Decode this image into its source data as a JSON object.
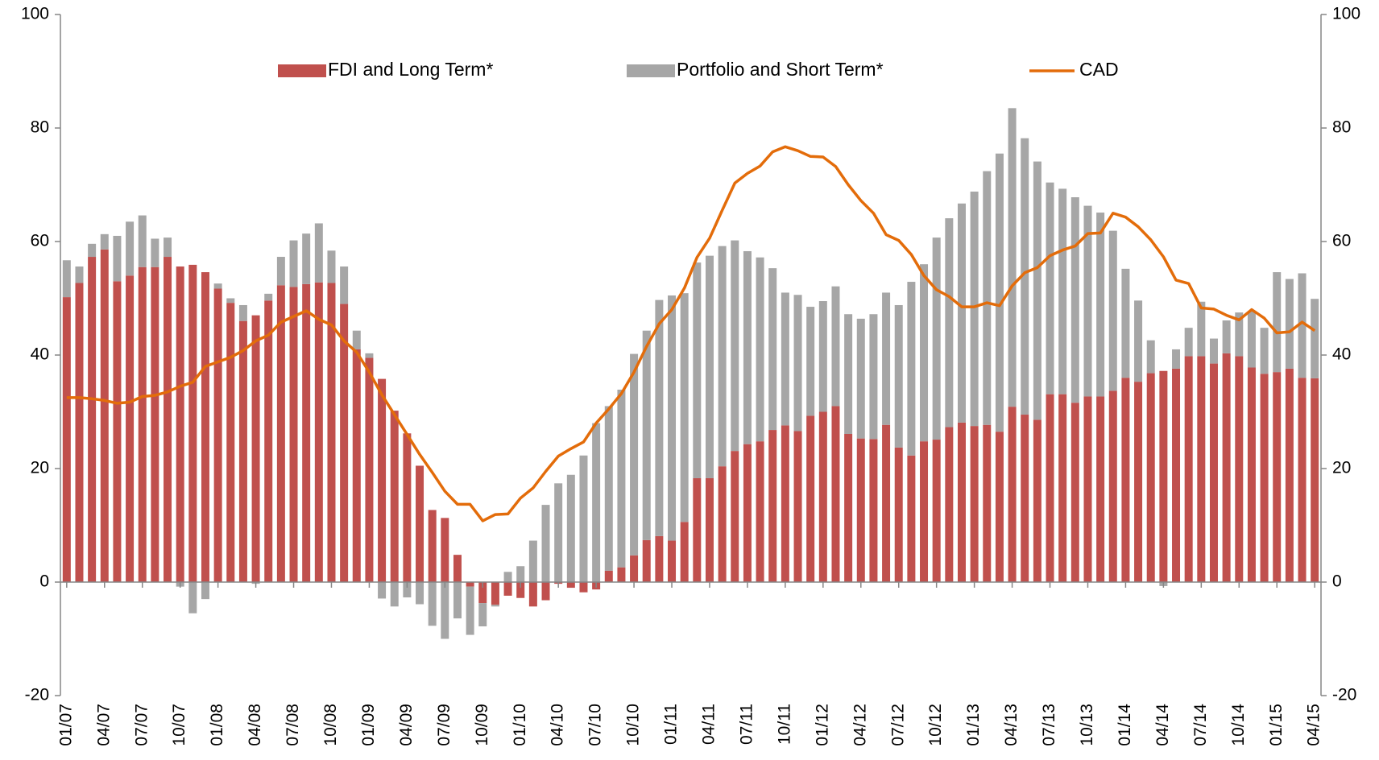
{
  "chart_data": {
    "type": "bar",
    "categories": [
      "01/07",
      null,
      null,
      "04/07",
      null,
      null,
      "07/07",
      null,
      null,
      "10/07",
      null,
      null,
      "01/08",
      null,
      null,
      "04/08",
      null,
      null,
      "07/08",
      null,
      null,
      "10/08",
      null,
      null,
      "01/09",
      null,
      null,
      "04/09",
      null,
      null,
      "07/09",
      null,
      null,
      "10/09",
      null,
      null,
      "01/10",
      null,
      null,
      "04/10",
      null,
      null,
      "07/10",
      null,
      null,
      "10/10",
      null,
      null,
      "01/11",
      null,
      null,
      "04/11",
      null,
      null,
      "07/11",
      null,
      null,
      "10/11",
      null,
      null,
      "01/12",
      null,
      null,
      "04/12",
      null,
      null,
      "07/12",
      null,
      null,
      "10/12",
      null,
      null,
      "01/13",
      null,
      null,
      "04/13",
      null,
      null,
      "07/13",
      null,
      null,
      "10/13",
      null,
      null,
      "01/14",
      null,
      null,
      "04/14",
      null,
      null,
      "07/14",
      null,
      null,
      "10/14",
      null,
      null,
      "01/15",
      null,
      null,
      "04/15"
    ],
    "series": [
      {
        "name": "FDI and Long Term*",
        "type": "bar",
        "color": "#c0504d",
        "values": [
          50.2,
          52.7,
          57.3,
          58.6,
          53,
          54,
          55.5,
          55.5,
          57.3,
          55.6,
          55.9,
          54.6,
          51.7,
          49.2,
          46,
          47,
          49.6,
          52.3,
          52,
          52.5,
          52.8,
          52.7,
          49,
          41,
          39.5,
          35.8,
          30.2,
          26.2,
          20.5,
          12.7,
          11.3,
          4.8,
          -0.8,
          -3.7,
          -4,
          -2.4,
          -2.8,
          -4.3,
          -3.2,
          -0.3,
          -1,
          -1.8,
          -1.3,
          2,
          2.6,
          4.7,
          7.4,
          8.1,
          7.3,
          10.6,
          18.3,
          18.3,
          20.4,
          23.1,
          24.3,
          24.8,
          26.8,
          27.6,
          26.6,
          29.3,
          30,
          31,
          26.1,
          25.3,
          25.2,
          27.7,
          23.7,
          22.3,
          24.8,
          25.1,
          27.3,
          28.1,
          27.5,
          27.7,
          26.5,
          30.9,
          29.5,
          28.6,
          33.1,
          33.1,
          31.6,
          32.7,
          32.7,
          33.7,
          36,
          35.3,
          36.8,
          37.2,
          37.6,
          39.8,
          39.8,
          38.5,
          40.3,
          39.8,
          37.8,
          36.7,
          37,
          37.6,
          36,
          35.9
        ]
      },
      {
        "name": "Portfolio and Short Term*",
        "type": "bar",
        "color": "#a6a6a6",
        "values": [
          6.5,
          2.9,
          2.3,
          2.7,
          8,
          9.5,
          9.1,
          5,
          3.4,
          -0.8,
          -5.5,
          -3,
          0.9,
          0.8,
          2.8,
          -0.3,
          1.2,
          5,
          8.2,
          8.9,
          10.4,
          5.7,
          6.6,
          3.3,
          0.8,
          -2.9,
          -4.3,
          -2.7,
          -3.9,
          -7.7,
          -10,
          -6.4,
          -8.5,
          -4.1,
          -0.3,
          1.8,
          2.8,
          7.3,
          13.6,
          17.4,
          18.9,
          22.3,
          28,
          29,
          31.3,
          35.5,
          36.9,
          41.6,
          43.2,
          40.3,
          38,
          39.2,
          38.8,
          37.1,
          34,
          32.4,
          28.5,
          23.4,
          24,
          19.2,
          19.5,
          21.1,
          21.1,
          21.1,
          22,
          23.3,
          25.1,
          30.6,
          31.2,
          35.6,
          36.8,
          38.6,
          41.3,
          44.7,
          49,
          52.6,
          48.7,
          45.5,
          37.3,
          36.2,
          36.2,
          33.6,
          32.4,
          28.2,
          19.2,
          14.3,
          5.8,
          -0.7,
          3.4,
          5,
          9.6,
          4.4,
          5.8,
          7.7,
          9.9,
          8.1,
          17.6,
          15.8,
          18.4,
          14
        ]
      },
      {
        "name": "CAD",
        "type": "line",
        "axis": "y2",
        "color": "#e36c0a",
        "values": [
          32.5,
          32.5,
          32.3,
          32,
          31.5,
          31.7,
          32.7,
          32.9,
          33.5,
          34.5,
          35.2,
          38,
          38.8,
          39.6,
          40.8,
          42.5,
          43.5,
          45.8,
          46.8,
          47.8,
          46.3,
          45.3,
          42.5,
          40.5,
          37,
          33,
          29.5,
          26,
          22.5,
          19.3,
          16,
          13.7,
          13.7,
          10.8,
          11.9,
          12,
          14.8,
          16.6,
          19.5,
          22.2,
          23.5,
          24.7,
          28,
          30.5,
          33.2,
          37,
          41.5,
          45.5,
          48,
          51.8,
          57.2,
          60.6,
          65.5,
          70.3,
          72,
          73.3,
          75.8,
          76.7,
          76,
          75,
          74.9,
          73.2,
          70,
          67.2,
          65,
          61.2,
          60.2,
          57.7,
          54,
          51.5,
          50.3,
          48.5,
          48.5,
          49.2,
          48.7,
          52.2,
          54.5,
          55.4,
          57.5,
          58.5,
          59.2,
          61.4,
          61.5,
          65,
          64.3,
          62.6,
          60.3,
          57.3,
          53.2,
          52.6,
          48.3,
          48.1,
          47,
          46.2,
          48,
          46.5,
          43.9,
          44.1,
          45.8,
          44.3
        ]
      }
    ],
    "ylim": [
      -20,
      100
    ],
    "yticks": [
      -20,
      0,
      20,
      40,
      60,
      80,
      100
    ],
    "y2lim": [
      -20,
      100
    ],
    "y2ticks": [
      -20,
      0,
      20,
      40,
      60,
      80,
      100
    ],
    "stacked": true,
    "legend": "top"
  }
}
